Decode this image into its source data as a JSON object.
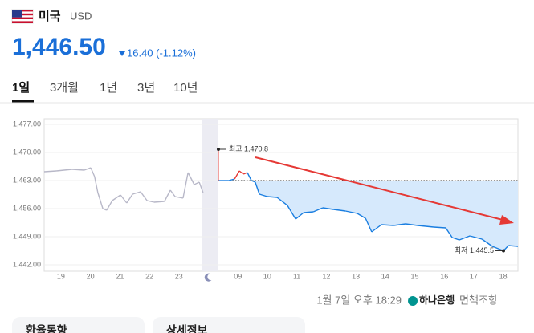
{
  "header": {
    "country": "미국",
    "currency": "USD",
    "price": "1,446.50",
    "change": "16.40 (-1.12%)"
  },
  "tabs": [
    "1일",
    "3개월",
    "1년",
    "3년",
    "10년"
  ],
  "chart_data": {
    "type": "line",
    "categories": [
      "19",
      "20",
      "21",
      "22",
      "23",
      null,
      "09",
      "10",
      "11",
      "12",
      "13",
      "14",
      "15",
      "16",
      "17",
      "18"
    ],
    "xlim": [
      -0.57,
      15.5
    ],
    "ylim": [
      1442,
      1477
    ],
    "yticks": [
      {
        "value": 1442,
        "label": "1,442.00"
      },
      {
        "value": 1449,
        "label": "1,449.00"
      },
      {
        "value": 1456,
        "label": "1,456.00"
      },
      {
        "value": 1463,
        "label": "1,463.00"
      },
      {
        "value": 1470,
        "label": "1,470.00"
      },
      {
        "value": 1477,
        "label": "1,477.00"
      }
    ],
    "grid": true,
    "reference": 1463,
    "series": [
      {
        "color": "#b8b8c8",
        "x": [
          -0.57,
          -0.16,
          0.38,
          0.79,
          1.01,
          1.14,
          1.25,
          1.42,
          1.55,
          1.74,
          2.02,
          2.23,
          2.43,
          2.7,
          2.92,
          3.16,
          3.51,
          3.71,
          3.87,
          4.14,
          4.31,
          4.52,
          4.69,
          4.82
        ],
        "values": [
          1465.2,
          1465.4,
          1465.8,
          1465.6,
          1466.2,
          1464,
          1460,
          1456,
          1455.6,
          1458,
          1459.4,
          1457.4,
          1459.6,
          1460.2,
          1458,
          1457.6,
          1457.8,
          1460.6,
          1459,
          1458.6,
          1465,
          1462,
          1462.6,
          1460
        ]
      },
      {
        "color": "#1a7ee0",
        "up_color": "#e53935",
        "x": [
          5.34,
          5.69,
          5.89,
          6.05,
          6.19,
          6.32,
          6.46,
          6.59,
          6.73,
          7.0,
          7.33,
          7.68,
          7.96,
          8.23,
          8.56,
          8.88,
          9.24,
          9.65,
          10.05,
          10.33,
          10.54,
          10.87,
          11.28,
          11.69,
          12.1,
          12.64,
          13.05,
          13.27,
          13.51,
          13.87,
          14.28,
          14.63,
          15.01,
          15.18,
          15.5
        ],
        "values": [
          1463,
          1463,
          1463.4,
          1465.4,
          1464.6,
          1465,
          1463,
          1462.6,
          1459.6,
          1459,
          1458.8,
          1456.8,
          1453.4,
          1455,
          1455.2,
          1456.2,
          1455.8,
          1455.4,
          1454.8,
          1453.6,
          1450.2,
          1452,
          1451.8,
          1452.2,
          1451.8,
          1451.4,
          1451.2,
          1448.8,
          1448.2,
          1449.2,
          1448.4,
          1446.6,
          1445.5,
          1446.8,
          1446.6
        ]
      }
    ],
    "annotations": [
      {
        "text": "최고 1,470.8",
        "x": 5.34,
        "value": 1470.8
      },
      {
        "text": "최저 1,445.5",
        "x": 15.01,
        "value": 1445.5
      }
    ]
  },
  "footer": {
    "time": "1월 7일 오후 18:29",
    "bank": "하나은행",
    "disclaimer": "면책조항"
  },
  "cards": [
    "환율동향",
    "상세정보"
  ]
}
